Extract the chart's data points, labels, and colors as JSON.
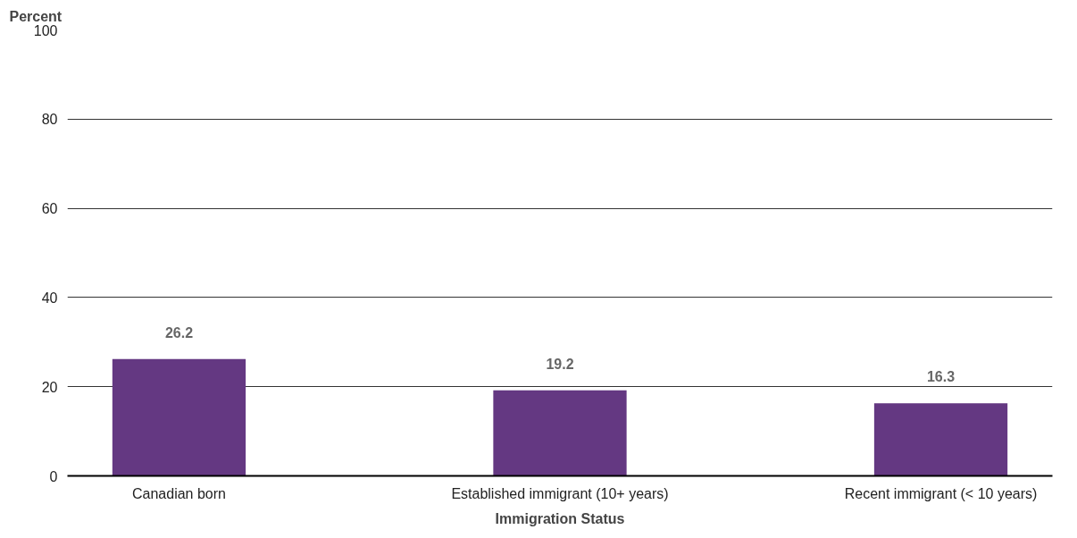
{
  "chart_data": {
    "type": "bar",
    "ylabel": "Percent",
    "xlabel": "Immigration Status",
    "categories": [
      "Canadian born",
      "Established immigrant (10+ years)",
      "Recent immigrant (< 10 years)"
    ],
    "values": [
      26.2,
      19.2,
      16.3
    ],
    "color": "#643882",
    "ylim": [
      0,
      100
    ],
    "yticks": [
      0,
      20,
      40,
      60,
      80,
      100
    ],
    "grid": "y",
    "data_labels": true
  }
}
